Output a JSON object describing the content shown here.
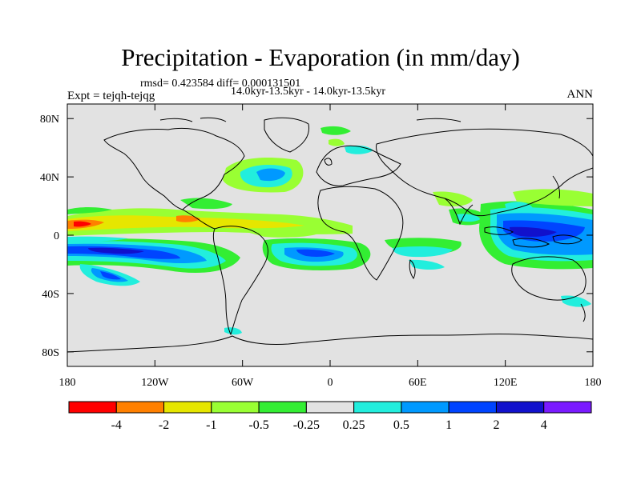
{
  "title": "Precipitation - Evaporation (in mm/day)",
  "stats": "rmsd= 0.423584  diff= 0.000131501",
  "period": "14.0kyr-13.5kyr - 14.0kyr-13.5kyr",
  "expt": "Expt = tejqh-tejqg",
  "season": "ANN",
  "map": {
    "projection": "cylindrical-equidistant",
    "lon_range": [
      -180,
      180
    ],
    "lat_range": [
      -90,
      90
    ],
    "x_ticks": [
      {
        "value": -180,
        "label": "180"
      },
      {
        "value": -120,
        "label": "120W"
      },
      {
        "value": -60,
        "label": "60W"
      },
      {
        "value": 0,
        "label": "0"
      },
      {
        "value": 60,
        "label": "60E"
      },
      {
        "value": 120,
        "label": "120E"
      },
      {
        "value": 180,
        "label": "180"
      }
    ],
    "y_ticks": [
      {
        "value": 80,
        "label": "80N"
      },
      {
        "value": 40,
        "label": "40N"
      },
      {
        "value": 0,
        "label": "0"
      },
      {
        "value": -40,
        "label": "40S"
      },
      {
        "value": -80,
        "label": "80S"
      }
    ],
    "background_color": "#e2e2e2",
    "coast_color": "#000000"
  },
  "colorbar": {
    "colors": [
      "#ff0000",
      "#ff8000",
      "#e6e600",
      "#99ff33",
      "#33ee33",
      "#e2e2e2",
      "#22eedd",
      "#0099ff",
      "#0044ff",
      "#1111cc",
      "#7a1aff"
    ],
    "labels": [
      "-4",
      "-2",
      "-1",
      "-0.5",
      "-0.25",
      "0.25",
      "0.5",
      "1",
      "2",
      "4"
    ]
  }
}
